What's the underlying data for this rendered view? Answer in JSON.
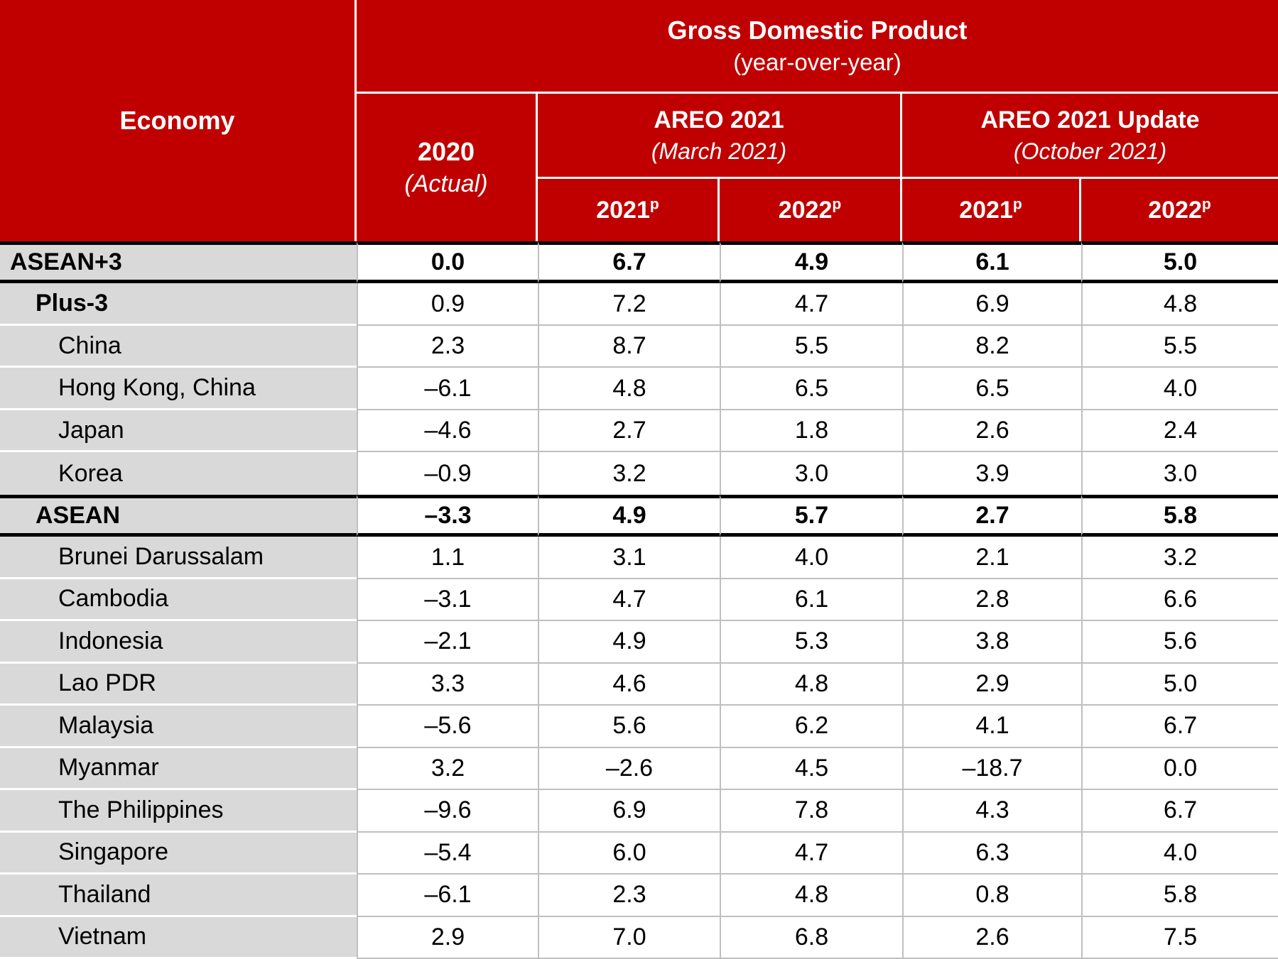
{
  "header": {
    "economy_label": "Economy",
    "gdp": {
      "title": "Gross Domestic Product",
      "subtitle": "(year-over-year)"
    },
    "col_2020": {
      "title": "2020",
      "subtitle": "(Actual)"
    },
    "areo_2021": {
      "title": "AREO 2021",
      "subtitle": "(March 2021)"
    },
    "areo_2021_update": {
      "title": "AREO 2021 Update",
      "subtitle": "(October 2021)"
    },
    "year_cols": [
      {
        "year": "2021",
        "sup": "p"
      },
      {
        "year": "2022",
        "sup": "p"
      },
      {
        "year": "2021",
        "sup": "p"
      },
      {
        "year": "2022",
        "sup": "p"
      }
    ]
  },
  "colors": {
    "header_red": "#C00000",
    "economy_gray": "#D9D9D9",
    "grid_line_gray": "#BFBFBF",
    "thick_line_black": "#000000",
    "header_text": "#FFFFFF"
  },
  "rows": [
    {
      "economy": "ASEAN+3",
      "indent": 0,
      "bold": true,
      "bold_values": true,
      "thick_top": true,
      "thick_bottom": true,
      "no_thin_bottom": false,
      "values": [
        "0.0",
        "6.7",
        "4.9",
        "6.1",
        "5.0"
      ]
    },
    {
      "economy": "Plus-3",
      "indent": 1,
      "bold": true,
      "bold_values": false,
      "thick_top": false,
      "thick_bottom": false,
      "no_thin_bottom": false,
      "values": [
        "0.9",
        "7.2",
        "4.7",
        "6.9",
        "4.8"
      ]
    },
    {
      "economy": "China",
      "indent": 2,
      "bold": false,
      "bold_values": false,
      "thick_top": false,
      "thick_bottom": false,
      "no_thin_bottom": false,
      "values": [
        "2.3",
        "8.7",
        "5.5",
        "8.2",
        "5.5"
      ]
    },
    {
      "economy": "Hong Kong, China",
      "indent": 2,
      "bold": false,
      "bold_values": false,
      "thick_top": false,
      "thick_bottom": false,
      "no_thin_bottom": false,
      "values": [
        "–6.1",
        "4.8",
        "6.5",
        "6.5",
        "4.0"
      ]
    },
    {
      "economy": "Japan",
      "indent": 2,
      "bold": false,
      "bold_values": false,
      "thick_top": false,
      "thick_bottom": false,
      "no_thin_bottom": false,
      "values": [
        "–4.6",
        "2.7",
        "1.8",
        "2.6",
        "2.4"
      ]
    },
    {
      "economy": "Korea",
      "indent": 2,
      "bold": false,
      "bold_values": false,
      "thick_top": false,
      "thick_bottom": false,
      "no_thin_bottom": true,
      "values": [
        "–0.9",
        "3.2",
        "3.0",
        "3.9",
        "3.0"
      ]
    },
    {
      "economy": "ASEAN",
      "indent": 1,
      "bold": true,
      "bold_values": true,
      "thick_top": true,
      "thick_bottom": true,
      "no_thin_bottom": false,
      "values": [
        "–3.3",
        "4.9",
        "5.7",
        "2.7",
        "5.8"
      ]
    },
    {
      "economy": "Brunei Darussalam",
      "indent": 2,
      "bold": false,
      "bold_values": false,
      "thick_top": false,
      "thick_bottom": false,
      "no_thin_bottom": false,
      "values": [
        "1.1",
        "3.1",
        "4.0",
        "2.1",
        "3.2"
      ]
    },
    {
      "economy": "Cambodia",
      "indent": 2,
      "bold": false,
      "bold_values": false,
      "thick_top": false,
      "thick_bottom": false,
      "no_thin_bottom": false,
      "values": [
        "–3.1",
        "4.7",
        "6.1",
        "2.8",
        "6.6"
      ]
    },
    {
      "economy": "Indonesia",
      "indent": 2,
      "bold": false,
      "bold_values": false,
      "thick_top": false,
      "thick_bottom": false,
      "no_thin_bottom": false,
      "values": [
        "–2.1",
        "4.9",
        "5.3",
        "3.8",
        "5.6"
      ]
    },
    {
      "economy": "Lao PDR",
      "indent": 2,
      "bold": false,
      "bold_values": false,
      "thick_top": false,
      "thick_bottom": false,
      "no_thin_bottom": false,
      "values": [
        "3.3",
        "4.6",
        "4.8",
        "2.9",
        "5.0"
      ]
    },
    {
      "economy": "Malaysia",
      "indent": 2,
      "bold": false,
      "bold_values": false,
      "thick_top": false,
      "thick_bottom": false,
      "no_thin_bottom": false,
      "values": [
        "–5.6",
        "5.6",
        "6.2",
        "4.1",
        "6.7"
      ]
    },
    {
      "economy": "Myanmar",
      "indent": 2,
      "bold": false,
      "bold_values": false,
      "thick_top": false,
      "thick_bottom": false,
      "no_thin_bottom": false,
      "values": [
        "3.2",
        "–2.6",
        "4.5",
        "–18.7",
        "0.0"
      ]
    },
    {
      "economy": "The Philippines",
      "indent": 2,
      "bold": false,
      "bold_values": false,
      "thick_top": false,
      "thick_bottom": false,
      "no_thin_bottom": false,
      "values": [
        "–9.6",
        "6.9",
        "7.8",
        "4.3",
        "6.7"
      ]
    },
    {
      "economy": "Singapore",
      "indent": 2,
      "bold": false,
      "bold_values": false,
      "thick_top": false,
      "thick_bottom": false,
      "no_thin_bottom": false,
      "values": [
        "–5.4",
        "6.0",
        "4.7",
        "6.3",
        "4.0"
      ]
    },
    {
      "economy": "Thailand",
      "indent": 2,
      "bold": false,
      "bold_values": false,
      "thick_top": false,
      "thick_bottom": false,
      "no_thin_bottom": false,
      "values": [
        "–6.1",
        "2.3",
        "4.8",
        "0.8",
        "5.8"
      ]
    },
    {
      "economy": "Vietnam",
      "indent": 2,
      "bold": false,
      "bold_values": false,
      "thick_top": false,
      "thick_bottom": false,
      "no_thin_bottom": false,
      "values": [
        "2.9",
        "7.0",
        "6.8",
        "2.6",
        "7.5"
      ]
    }
  ],
  "chart_data": {
    "type": "table",
    "title": "Gross Domestic Product (year-over-year)",
    "columns": [
      "Economy",
      "2020 (Actual)",
      "AREO 2021 (March 2021) 2021p",
      "AREO 2021 (March 2021) 2022p",
      "AREO 2021 Update (October 2021) 2021p",
      "AREO 2021 Update (October 2021) 2022p"
    ],
    "rows": [
      {
        "economy": "ASEAN+3",
        "values": [
          0.0,
          6.7,
          4.9,
          6.1,
          5.0
        ]
      },
      {
        "economy": "Plus-3",
        "values": [
          0.9,
          7.2,
          4.7,
          6.9,
          4.8
        ]
      },
      {
        "economy": "China",
        "values": [
          2.3,
          8.7,
          5.5,
          8.2,
          5.5
        ]
      },
      {
        "economy": "Hong Kong, China",
        "values": [
          -6.1,
          4.8,
          6.5,
          6.5,
          4.0
        ]
      },
      {
        "economy": "Japan",
        "values": [
          -4.6,
          2.7,
          1.8,
          2.6,
          2.4
        ]
      },
      {
        "economy": "Korea",
        "values": [
          -0.9,
          3.2,
          3.0,
          3.9,
          3.0
        ]
      },
      {
        "economy": "ASEAN",
        "values": [
          -3.3,
          4.9,
          5.7,
          2.7,
          5.8
        ]
      },
      {
        "economy": "Brunei Darussalam",
        "values": [
          1.1,
          3.1,
          4.0,
          2.1,
          3.2
        ]
      },
      {
        "economy": "Cambodia",
        "values": [
          -3.1,
          4.7,
          6.1,
          2.8,
          6.6
        ]
      },
      {
        "economy": "Indonesia",
        "values": [
          -2.1,
          4.9,
          5.3,
          3.8,
          5.6
        ]
      },
      {
        "economy": "Lao PDR",
        "values": [
          3.3,
          4.6,
          4.8,
          2.9,
          5.0
        ]
      },
      {
        "economy": "Malaysia",
        "values": [
          -5.6,
          5.6,
          6.2,
          4.1,
          6.7
        ]
      },
      {
        "economy": "Myanmar",
        "values": [
          3.2,
          -2.6,
          4.5,
          -18.7,
          0.0
        ]
      },
      {
        "economy": "The Philippines",
        "values": [
          -9.6,
          6.9,
          7.8,
          4.3,
          6.7
        ]
      },
      {
        "economy": "Singapore",
        "values": [
          -5.4,
          6.0,
          4.7,
          6.3,
          4.0
        ]
      },
      {
        "economy": "Thailand",
        "values": [
          -6.1,
          2.3,
          4.8,
          0.8,
          5.8
        ]
      },
      {
        "economy": "Vietnam",
        "values": [
          2.9,
          7.0,
          6.8,
          2.6,
          7.5
        ]
      }
    ]
  }
}
